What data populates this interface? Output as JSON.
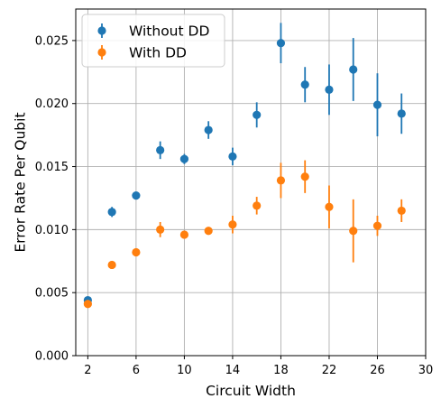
{
  "chart_data": {
    "type": "scatter",
    "title": "",
    "xlabel": "Circuit Width",
    "ylabel": "Error Rate Per Qubit",
    "xlim": [
      1,
      30
    ],
    "ylim": [
      0,
      0.0275
    ],
    "xticks": [
      2,
      6,
      10,
      14,
      18,
      22,
      26,
      30
    ],
    "xtick_labels": [
      "2",
      "6",
      "10",
      "14",
      "18",
      "22",
      "26",
      "30"
    ],
    "yticks": [
      0,
      0.005,
      0.01,
      0.015,
      0.02,
      0.025
    ],
    "ytick_labels": [
      "0.000",
      "0.005",
      "0.010",
      "0.015",
      "0.020",
      "0.025"
    ],
    "grid": true,
    "legend_position": "top-left",
    "series": [
      {
        "name": "Without DD",
        "color": "#1f77b4",
        "x": [
          2,
          4,
          6,
          8,
          10,
          12,
          14,
          16,
          18,
          20,
          22,
          24,
          26,
          28
        ],
        "y": [
          0.0044,
          0.0114,
          0.0127,
          0.0163,
          0.0156,
          0.0179,
          0.0158,
          0.0191,
          0.0248,
          0.0215,
          0.0211,
          0.0227,
          0.0199,
          0.0192
        ],
        "err": [
          0.0002,
          0.0004,
          0.0003,
          0.0007,
          0.0004,
          0.0007,
          0.0007,
          0.001,
          0.0016,
          0.0014,
          0.002,
          0.0025,
          0.0025,
          0.0016
        ]
      },
      {
        "name": "With DD",
        "color": "#ff7f0e",
        "x": [
          2,
          4,
          6,
          8,
          10,
          12,
          14,
          16,
          18,
          20,
          22,
          24,
          26,
          28
        ],
        "y": [
          0.0041,
          0.0072,
          0.0082,
          0.01,
          0.0096,
          0.0099,
          0.0104,
          0.0119,
          0.0139,
          0.0142,
          0.0118,
          0.0099,
          0.0103,
          0.0115
        ],
        "err": [
          0.0002,
          0.0002,
          0.0003,
          0.0006,
          0.0002,
          0.0002,
          0.0007,
          0.0007,
          0.0014,
          0.0013,
          0.0017,
          0.0025,
          0.0008,
          0.0009
        ]
      }
    ]
  }
}
